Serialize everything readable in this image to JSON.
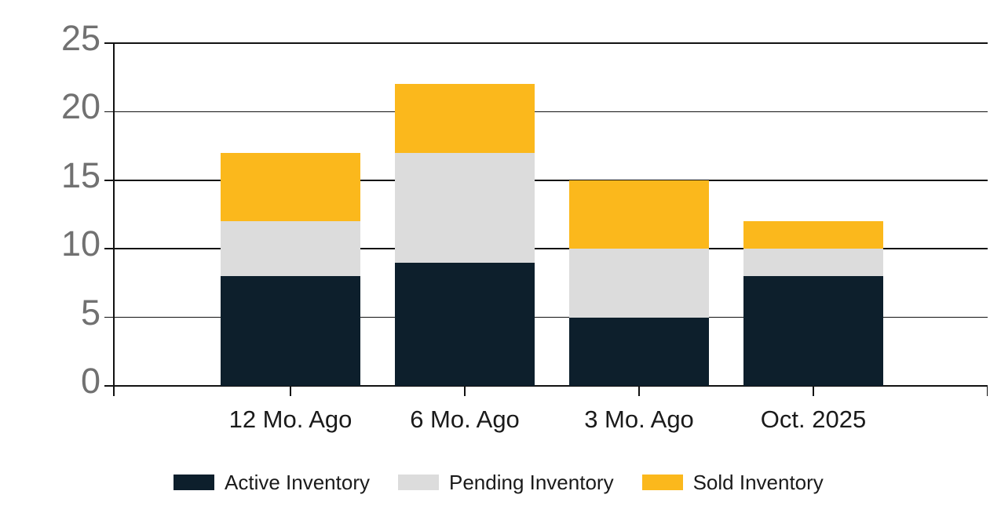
{
  "chart_data": {
    "type": "bar",
    "stacked": true,
    "title": "",
    "xlabel": "",
    "ylabel": "",
    "categories": [
      "12 Mo. Ago",
      "6 Mo. Ago",
      "3 Mo. Ago",
      "Oct. 2025"
    ],
    "series": [
      {
        "name": "Active Inventory",
        "color": "#0d1f2c",
        "values": [
          8,
          9,
          5,
          8
        ]
      },
      {
        "name": "Pending Inventory",
        "color": "#dcdcdc",
        "values": [
          4,
          8,
          5,
          2
        ]
      },
      {
        "name": "Sold Inventory",
        "color": "#fbb81c",
        "values": [
          5,
          5,
          5,
          2
        ]
      }
    ],
    "ylim": [
      0,
      25
    ],
    "yticks": [
      0,
      5,
      10,
      15,
      20,
      25
    ],
    "grid": true,
    "legend_position": "bottom"
  },
  "colors": {
    "background": "#ffffff",
    "grid_line": "#121212",
    "axis_line": "#121212",
    "y_tick_label": "#717171",
    "x_tick_label": "#1a1a1a",
    "legend_text": "#1a1a1a"
  }
}
